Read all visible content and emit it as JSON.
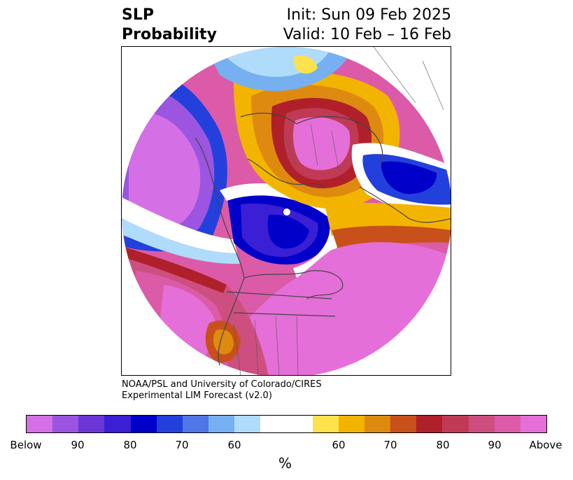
{
  "title": {
    "left_line1": "SLP",
    "left_line2": "Probability",
    "right_line1": "Init: Sun 09 Feb 2025",
    "right_line2": "Valid: 10 Feb – 16 Feb"
  },
  "credit": {
    "line1": "NOAA/PSL and University of Colorado/CIRES",
    "line2": "Experimental LIM Forecast (v2.0)"
  },
  "colorbar": {
    "colors": [
      "#d56fe6",
      "#9b55e0",
      "#6a36d8",
      "#3a1fd4",
      "#0000c8",
      "#2340dc",
      "#4f75e6",
      "#76b0f0",
      "#afdcfa",
      "#ffffff",
      "#fde24d",
      "#f3b400",
      "#de8a10",
      "#c8501a",
      "#b0202a",
      "#c03a55",
      "#cd4f80",
      "#db5ba8",
      "#e56fd8"
    ],
    "tick_labels": [
      "Below",
      "90",
      "80",
      "70",
      "60",
      "60",
      "70",
      "80",
      "90",
      "Above"
    ],
    "unit": "%"
  },
  "map": {
    "projection": "north-polar-stereographic",
    "shading": "above/below normal sea level pressure probability"
  }
}
